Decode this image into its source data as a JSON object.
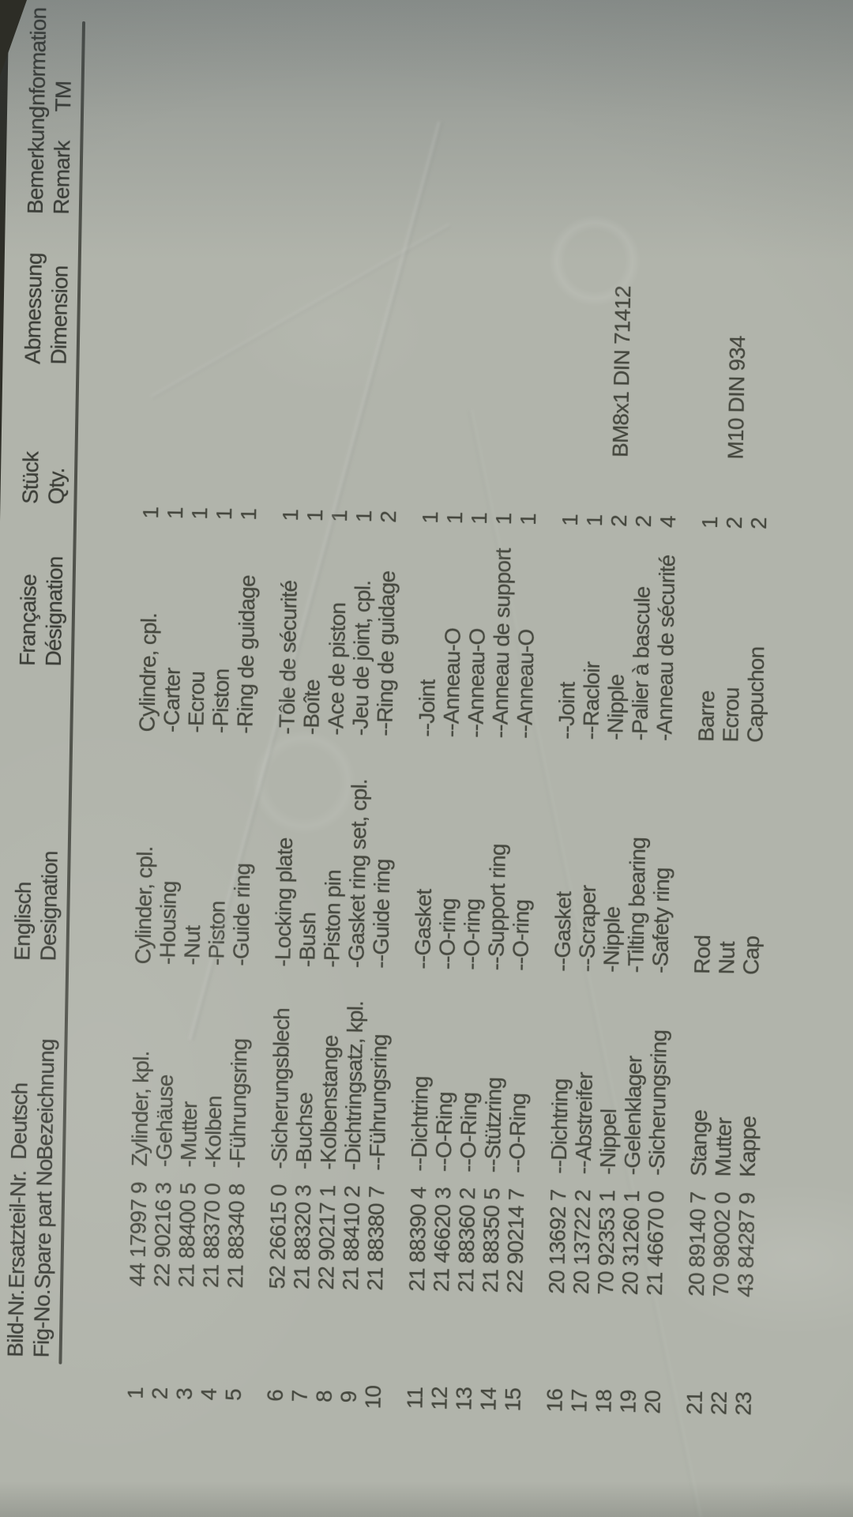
{
  "document": {
    "type": "spare-parts-list-photo",
    "headers": [
      {
        "id": "fig",
        "line1": "Bild-Nr.",
        "line2": "Fig-No."
      },
      {
        "id": "part",
        "line1": "Ersatzteil-Nr.",
        "line2": "Spare part No."
      },
      {
        "id": "de",
        "line1": "Deutsch",
        "line2": "Bezeichnung"
      },
      {
        "id": "en",
        "line1": "Englisch",
        "line2": "Designation"
      },
      {
        "id": "fr",
        "line1": "Française",
        "line2": "Désignation"
      },
      {
        "id": "qty",
        "line1": "Stück",
        "line2": "Qty."
      },
      {
        "id": "dim",
        "line1": "Abmessung",
        "line2": "Dimension"
      },
      {
        "id": "rem",
        "line1": "Bemerkung",
        "line2": "Remark"
      },
      {
        "id": "info",
        "line1": "Information",
        "line2": "TM"
      }
    ],
    "rows": [
      {
        "fig": "1",
        "part": "44 17997 9",
        "de": "Zylinder, kpl.",
        "en": "Cylinder, cpl.",
        "fr": "Cylindre, cpl.",
        "qty": "1",
        "dim": "",
        "rem": "",
        "info": ""
      },
      {
        "fig": "2",
        "part": "22 90216 3",
        "de": "-Gehäuse",
        "en": "-Housing",
        "fr": "-Carter",
        "qty": "1",
        "dim": "",
        "rem": "",
        "info": ""
      },
      {
        "fig": "3",
        "part": "21 88400 5",
        "de": "-Mutter",
        "en": "-Nut",
        "fr": "-Ecrou",
        "qty": "1",
        "dim": "",
        "rem": "",
        "info": ""
      },
      {
        "fig": "4",
        "part": "21 88370 0",
        "de": "-Kolben",
        "en": "-Piston",
        "fr": "-Piston",
        "qty": "1",
        "dim": "",
        "rem": "",
        "info": ""
      },
      {
        "fig": "5",
        "part": "21 88340 8",
        "de": "-Führungsring",
        "en": "-Guide ring",
        "fr": "-Ring de guidage",
        "qty": "1",
        "dim": "",
        "rem": "",
        "info": ""
      },
      {
        "fig": "6",
        "part": "52 26615 0",
        "de": "-Sicherungsblech",
        "en": "-Locking plate",
        "fr": "-Tôle de sécurité",
        "qty": "1",
        "dim": "",
        "rem": "",
        "info": ""
      },
      {
        "fig": "7",
        "part": "21 88320 3",
        "de": "-Buchse",
        "en": "-Bush",
        "fr": "-Boîte",
        "qty": "1",
        "dim": "",
        "rem": "",
        "info": ""
      },
      {
        "fig": "8",
        "part": "22 90217 1",
        "de": "-Kolbenstange",
        "en": "-Piston pin",
        "fr": "-Ace de piston",
        "qty": "1",
        "dim": "",
        "rem": "",
        "info": ""
      },
      {
        "fig": "9",
        "part": "21 88410 2",
        "de": "-Dichtringsatz, kpl.",
        "en": "-Gasket ring set, cpl.",
        "fr": "-Jeu de joint, cpl.",
        "qty": "1",
        "dim": "",
        "rem": "",
        "info": ""
      },
      {
        "fig": "10",
        "part": "21 88380 7",
        "de": "--Führungsring",
        "en": "--Guide ring",
        "fr": "--Ring de guidage",
        "qty": "2",
        "dim": "",
        "rem": "",
        "info": ""
      },
      {
        "fig": "11",
        "part": "21 88390 4",
        "de": "--Dichtring",
        "en": "--Gasket",
        "fr": "--Joint",
        "qty": "1",
        "dim": "",
        "rem": "",
        "info": ""
      },
      {
        "fig": "12",
        "part": "21 46620 3",
        "de": "--O-Ring",
        "en": "--O-ring",
        "fr": "--Anneau-O",
        "qty": "1",
        "dim": "",
        "rem": "",
        "info": ""
      },
      {
        "fig": "13",
        "part": "21 88360 2",
        "de": "--O-Ring",
        "en": "--O-ring",
        "fr": "--Anneau-O",
        "qty": "1",
        "dim": "",
        "rem": "",
        "info": ""
      },
      {
        "fig": "14",
        "part": "21 88350 5",
        "de": "--Stützring",
        "en": "--Support ring",
        "fr": "--Anneau de support",
        "qty": "1",
        "dim": "",
        "rem": "",
        "info": ""
      },
      {
        "fig": "15",
        "part": "22 90214 7",
        "de": "--O-Ring",
        "en": "--O-ring",
        "fr": "--Anneau-O",
        "qty": "1",
        "dim": "",
        "rem": "",
        "info": ""
      },
      {
        "fig": "16",
        "part": "20 13692 7",
        "de": "--Dichtring",
        "en": "--Gasket",
        "fr": "--Joint",
        "qty": "1",
        "dim": "",
        "rem": "",
        "info": ""
      },
      {
        "fig": "17",
        "part": "20 13722 2",
        "de": "--Abstreifer",
        "en": "--Scraper",
        "fr": "--Racloir",
        "qty": "1",
        "dim": "",
        "rem": "",
        "info": ""
      },
      {
        "fig": "18",
        "part": "70 92353 1",
        "de": "-Nippel",
        "en": "-Nipple",
        "fr": "-Nipple",
        "qty": "2",
        "dim": "BM8x1 DIN 71412",
        "rem": "",
        "info": ""
      },
      {
        "fig": "19",
        "part": "20 31260 1",
        "de": "-Gelenklager",
        "en": "-Tilting bearing",
        "fr": "-Palier à bascule",
        "qty": "2",
        "dim": "",
        "rem": "",
        "info": ""
      },
      {
        "fig": "20",
        "part": "21 46670 0",
        "de": "-Sicherungsring",
        "en": "-Safety ring",
        "fr": "-Anneau de sécurité",
        "qty": "4",
        "dim": "",
        "rem": "",
        "info": ""
      },
      {
        "fig": "21",
        "part": "20 89140 7",
        "de": "Stange",
        "en": "Rod",
        "fr": "Barre",
        "qty": "1",
        "dim": "",
        "rem": "",
        "info": ""
      },
      {
        "fig": "22",
        "part": "70 98002 0",
        "de": "Mutter",
        "en": "Nut",
        "fr": "Ecrou",
        "qty": "2",
        "dim": "M10 DIN 934",
        "rem": "",
        "info": ""
      },
      {
        "fig": "23",
        "part": "43 84287 9",
        "de": "Kappe",
        "en": "Cap",
        "fr": "Capuchon",
        "qty": "2",
        "dim": "",
        "rem": "",
        "info": ""
      }
    ],
    "colors": {
      "paper": "#b1b4ab",
      "ink": "#46483f",
      "rule": "#50524b",
      "background": "#2d2d26"
    }
  }
}
